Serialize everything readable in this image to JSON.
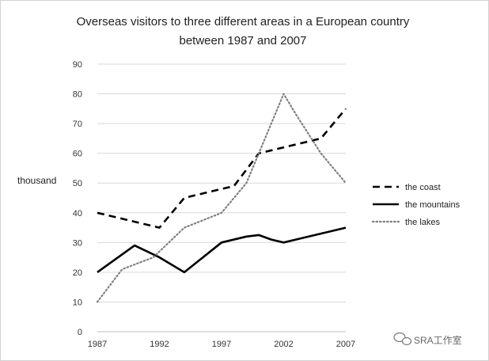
{
  "chart_data": {
    "type": "line",
    "title_lines": [
      "Overseas visitors to three different areas in a European country",
      "between 1987 and 2007"
    ],
    "ylabel": "thousand",
    "xlabel": "",
    "ylim": [
      0,
      90
    ],
    "yticks": [
      0,
      10,
      20,
      30,
      40,
      50,
      60,
      70,
      80,
      90
    ],
    "xlim": [
      1987,
      2007
    ],
    "xticks": [
      1987,
      1992,
      1997,
      2002,
      2007
    ],
    "grid": "horizontal",
    "legend_position": "right",
    "series": [
      {
        "name": "the coast",
        "style": "dashed",
        "color": "#000000",
        "x": [
          1987,
          1992,
          1994,
          1997,
          1998,
          2000,
          2002,
          2005,
          2007
        ],
        "values": [
          40,
          35,
          45,
          48,
          49,
          60,
          62,
          65,
          75
        ]
      },
      {
        "name": "the mountains",
        "style": "solid",
        "color": "#000000",
        "x": [
          1987,
          1990,
          1992,
          1994,
          1997,
          1999,
          2000,
          2001,
          2002,
          2007
        ],
        "values": [
          20,
          29,
          25,
          20,
          30,
          32,
          32.5,
          31,
          30,
          35
        ]
      },
      {
        "name": "the lakes",
        "style": "dotted",
        "color": "#808080",
        "x": [
          1987,
          1989,
          1991.5,
          1994,
          1997,
          1999,
          2000,
          2002,
          2003,
          2005,
          2007
        ],
        "values": [
          10,
          21,
          25,
          35,
          40,
          50,
          60,
          80,
          73,
          60,
          50
        ]
      }
    ]
  },
  "watermark": "SRA工作室"
}
